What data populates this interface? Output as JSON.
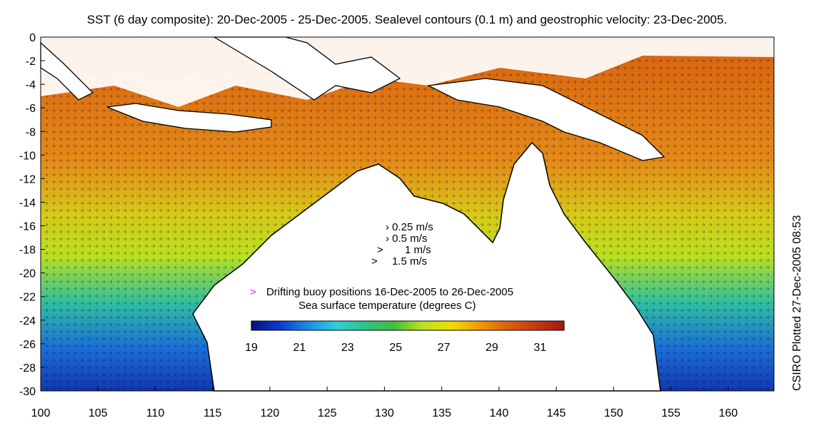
{
  "title": "SST (6 day composite): 20-Dec-2005 - 25-Dec-2005. Sealevel contours (0.1 m) and geostrophic velocity: 23-Dec-2005.",
  "credit": "CSIRO Plotted 27-Dec-2005 08:53",
  "axes": {
    "x_ticks": [
      "100",
      "105",
      "110",
      "115",
      "120",
      "125",
      "130",
      "135",
      "140",
      "145",
      "150",
      "155",
      "160"
    ],
    "y_ticks": [
      "0",
      "-2",
      "-4",
      "-6",
      "-8",
      "-10",
      "-12",
      "-14",
      "-16",
      "-18",
      "-20",
      "-22",
      "-24",
      "-26",
      "-28",
      "-30"
    ],
    "x_range": [
      100,
      164
    ],
    "y_range": [
      -30,
      0
    ]
  },
  "velocity_legend": [
    {
      "glyph": "›",
      "label": "0.25 m/s"
    },
    {
      "glyph": "›",
      "label": "0.5 m/s"
    },
    {
      "glyph": ">",
      "label": "1 m/s"
    },
    {
      "glyph": ">",
      "label": "1.5 m/s"
    }
  ],
  "buoy_legend": {
    "symbol": ">",
    "color": "#e020e0",
    "label": "Drifting buoy positions 16-Dec-2005 to 26-Dec-2005"
  },
  "colorbar": {
    "title": "Sea surface temperature (degrees C)",
    "ticks": [
      "19",
      "21",
      "23",
      "25",
      "27",
      "29",
      "31"
    ],
    "range": [
      19,
      32
    ],
    "colors": [
      "#08107a",
      "#0a3bd0",
      "#1a8de8",
      "#2fd0d8",
      "#2cc48a",
      "#3fbf3a",
      "#b7e020",
      "#f0e000",
      "#f59a00",
      "#e06010",
      "#c83a10",
      "#a01a10"
    ]
  },
  "sea_color_zones": {
    "warm_north": "#e07a18",
    "tropical": "#d25010",
    "subtropical": "#e8c010",
    "cool_south": "#1e6ed8",
    "coldest": "#1238b0"
  }
}
